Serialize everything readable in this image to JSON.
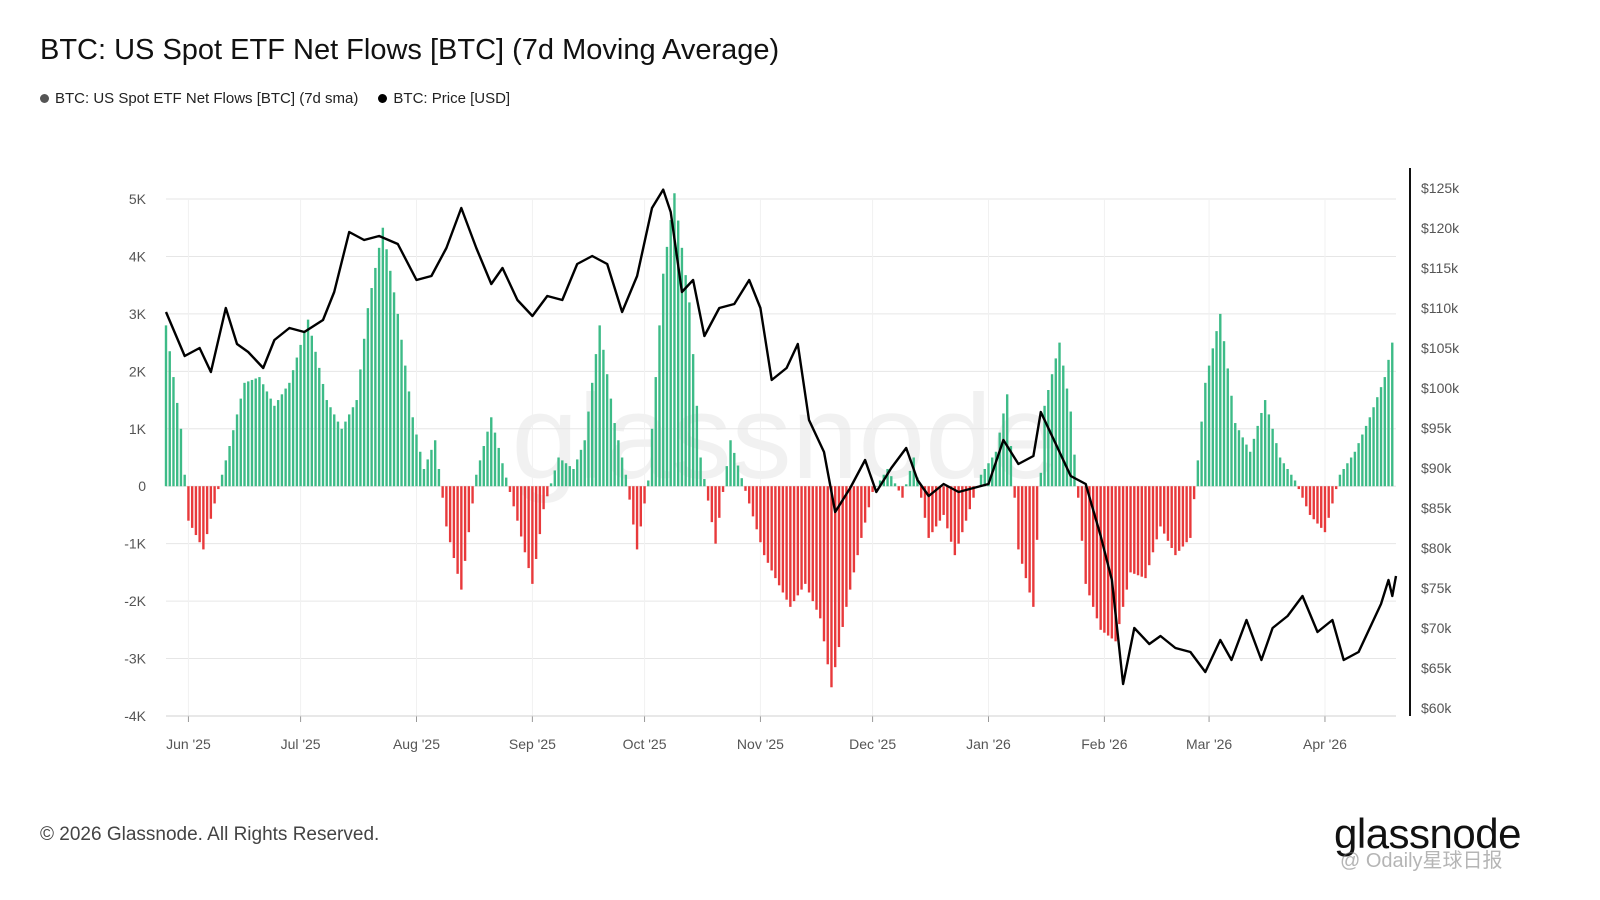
{
  "title": "BTC: US Spot ETF Net Flows [BTC] (7d Moving Average)",
  "legend": [
    {
      "label": "BTC: US Spot ETF Net Flows [BTC] (7d sma)",
      "color": "#555555"
    },
    {
      "label": "BTC: Price [USD]",
      "color": "#000000"
    }
  ],
  "footer": {
    "copyright": "© 2026 Glassnode. All Rights Reserved.",
    "brand": "glassnode",
    "watermark": "@ Odaily星球日报",
    "bg_watermark": "glassnode"
  },
  "colors": {
    "inflow": "#3dbb87",
    "outflow": "#e8393b",
    "price": "#000000"
  },
  "chart_data": {
    "type": "bar",
    "title": "BTC: US Spot ETF Net Flows [BTC] (7d Moving Average)",
    "x_start": "2025-05-26",
    "x_end": "2026-04-20",
    "x_ticks": [
      {
        "date": "2025-06-01",
        "label": "Jun '25"
      },
      {
        "date": "2025-07-01",
        "label": "Jul '25"
      },
      {
        "date": "2025-08-01",
        "label": "Aug '25"
      },
      {
        "date": "2025-09-01",
        "label": "Sep '25"
      },
      {
        "date": "2025-10-01",
        "label": "Oct '25"
      },
      {
        "date": "2025-11-01",
        "label": "Nov '25"
      },
      {
        "date": "2025-12-01",
        "label": "Dec '25"
      },
      {
        "date": "2026-01-01",
        "label": "Jan '26"
      },
      {
        "date": "2026-02-01",
        "label": "Feb '26"
      },
      {
        "date": "2026-03-01",
        "label": "Mar '26"
      },
      {
        "date": "2026-04-01",
        "label": "Apr '26"
      }
    ],
    "y_left": {
      "ylim": [
        -4000,
        5000
      ],
      "ticks": [
        {
          "v": 5000,
          "label": "5K"
        },
        {
          "v": 4000,
          "label": "4K"
        },
        {
          "v": 3000,
          "label": "3K"
        },
        {
          "v": 2000,
          "label": "2K"
        },
        {
          "v": 1000,
          "label": "1K"
        },
        {
          "v": 0,
          "label": "0"
        },
        {
          "v": -1000,
          "label": "-1K"
        },
        {
          "v": -2000,
          "label": "-2K"
        },
        {
          "v": -3000,
          "label": "-3K"
        },
        {
          "v": -4000,
          "label": "-4K"
        }
      ]
    },
    "y_right": {
      "ylim": [
        60000,
        125000
      ],
      "ticks": [
        {
          "v": 125000,
          "label": "$125k"
        },
        {
          "v": 120000,
          "label": "$120k"
        },
        {
          "v": 115000,
          "label": "$115k"
        },
        {
          "v": 110000,
          "label": "$110k"
        },
        {
          "v": 105000,
          "label": "$105k"
        },
        {
          "v": 100000,
          "label": "$100k"
        },
        {
          "v": 95000,
          "label": "$95k"
        },
        {
          "v": 90000,
          "label": "$90k"
        },
        {
          "v": 85000,
          "label": "$85k"
        },
        {
          "v": 80000,
          "label": "$80k"
        },
        {
          "v": 75000,
          "label": "$75k"
        },
        {
          "v": 70000,
          "label": "$70k"
        },
        {
          "v": 65000,
          "label": "$65k"
        },
        {
          "v": 60000,
          "label": "$60k"
        }
      ]
    },
    "grid": true,
    "legend_position": "top-left",
    "series": [
      {
        "name": "BTC: US Spot ETF Net Flows [BTC] (7d sma)",
        "type": "bar",
        "points": [
          [
            "2025-05-26",
            2800
          ],
          [
            "2025-05-30",
            1000
          ],
          [
            "2025-06-01",
            -600
          ],
          [
            "2025-06-05",
            -1100
          ],
          [
            "2025-06-08",
            -300
          ],
          [
            "2025-06-12",
            700
          ],
          [
            "2025-06-16",
            1800
          ],
          [
            "2025-06-20",
            1900
          ],
          [
            "2025-06-24",
            1400
          ],
          [
            "2025-06-28",
            1800
          ],
          [
            "2025-07-03",
            2900
          ],
          [
            "2025-07-08",
            1500
          ],
          [
            "2025-07-12",
            1000
          ],
          [
            "2025-07-16",
            1500
          ],
          [
            "2025-07-19",
            3100
          ],
          [
            "2025-07-23",
            4500
          ],
          [
            "2025-07-27",
            3000
          ],
          [
            "2025-07-31",
            1200
          ],
          [
            "2025-08-03",
            300
          ],
          [
            "2025-08-06",
            800
          ],
          [
            "2025-08-09",
            -700
          ],
          [
            "2025-08-13",
            -1800
          ],
          [
            "2025-08-17",
            200
          ],
          [
            "2025-08-21",
            1200
          ],
          [
            "2025-08-24",
            400
          ],
          [
            "2025-08-28",
            -600
          ],
          [
            "2025-09-01",
            -1700
          ],
          [
            "2025-09-04",
            -400
          ],
          [
            "2025-09-08",
            500
          ],
          [
            "2025-09-12",
            300
          ],
          [
            "2025-09-15",
            800
          ],
          [
            "2025-09-19",
            2800
          ],
          [
            "2025-09-23",
            1100
          ],
          [
            "2025-09-26",
            200
          ],
          [
            "2025-09-29",
            -1100
          ],
          [
            "2025-10-02",
            100
          ],
          [
            "2025-10-06",
            3700
          ],
          [
            "2025-10-09",
            5100
          ],
          [
            "2025-10-13",
            3200
          ],
          [
            "2025-10-16",
            500
          ],
          [
            "2025-10-20",
            -1000
          ],
          [
            "2025-10-24",
            800
          ],
          [
            "2025-10-29",
            -300
          ],
          [
            "2025-11-02",
            -1200
          ],
          [
            "2025-11-05",
            -1600
          ],
          [
            "2025-11-09",
            -2100
          ],
          [
            "2025-11-13",
            -1700
          ],
          [
            "2025-11-17",
            -2300
          ],
          [
            "2025-11-20",
            -3500
          ],
          [
            "2025-11-24",
            -2100
          ],
          [
            "2025-11-28",
            -900
          ],
          [
            "2025-12-01",
            -100
          ],
          [
            "2025-12-05",
            300
          ],
          [
            "2025-12-09",
            -200
          ],
          [
            "2025-12-12",
            500
          ],
          [
            "2025-12-16",
            -900
          ],
          [
            "2025-12-20",
            -500
          ],
          [
            "2025-12-23",
            -1200
          ],
          [
            "2025-12-27",
            -400
          ],
          [
            "2025-12-30",
            200
          ],
          [
            "2026-01-03",
            600
          ],
          [
            "2026-01-06",
            1600
          ],
          [
            "2026-01-09",
            -1100
          ],
          [
            "2026-01-13",
            -2100
          ],
          [
            "2026-01-16",
            1400
          ],
          [
            "2026-01-20",
            2500
          ],
          [
            "2026-01-23",
            1300
          ],
          [
            "2026-01-27",
            -1700
          ],
          [
            "2026-01-31",
            -2500
          ],
          [
            "2026-02-04",
            -2700
          ],
          [
            "2026-02-08",
            -1500
          ],
          [
            "2026-02-12",
            -1600
          ],
          [
            "2026-02-16",
            -700
          ],
          [
            "2026-02-20",
            -1200
          ],
          [
            "2026-02-24",
            -900
          ],
          [
            "2026-02-28",
            1800
          ],
          [
            "2026-03-04",
            3000
          ],
          [
            "2026-03-08",
            1100
          ],
          [
            "2026-03-12",
            600
          ],
          [
            "2026-03-16",
            1500
          ],
          [
            "2026-03-20",
            500
          ],
          [
            "2026-03-24",
            100
          ],
          [
            "2026-03-28",
            -500
          ],
          [
            "2026-04-01",
            -800
          ],
          [
            "2026-04-05",
            200
          ],
          [
            "2026-04-09",
            600
          ],
          [
            "2026-04-13",
            1200
          ],
          [
            "2026-04-17",
            1900
          ],
          [
            "2026-04-19",
            2500
          ]
        ]
      },
      {
        "name": "BTC: Price [USD]",
        "type": "line",
        "axis": "right",
        "points": [
          [
            "2025-05-26",
            109500
          ],
          [
            "2025-05-31",
            104000
          ],
          [
            "2025-06-04",
            105000
          ],
          [
            "2025-06-07",
            102000
          ],
          [
            "2025-06-11",
            110000
          ],
          [
            "2025-06-14",
            105500
          ],
          [
            "2025-06-17",
            104500
          ],
          [
            "2025-06-21",
            102500
          ],
          [
            "2025-06-24",
            106000
          ],
          [
            "2025-06-28",
            107500
          ],
          [
            "2025-07-02",
            107000
          ],
          [
            "2025-07-07",
            108500
          ],
          [
            "2025-07-10",
            112000
          ],
          [
            "2025-07-14",
            119500
          ],
          [
            "2025-07-18",
            118500
          ],
          [
            "2025-07-22",
            119000
          ],
          [
            "2025-07-27",
            118000
          ],
          [
            "2025-08-01",
            113500
          ],
          [
            "2025-08-05",
            114000
          ],
          [
            "2025-08-09",
            117500
          ],
          [
            "2025-08-13",
            122500
          ],
          [
            "2025-08-17",
            117500
          ],
          [
            "2025-08-21",
            113000
          ],
          [
            "2025-08-24",
            115000
          ],
          [
            "2025-08-28",
            111000
          ],
          [
            "2025-09-01",
            109000
          ],
          [
            "2025-09-05",
            111500
          ],
          [
            "2025-09-09",
            111000
          ],
          [
            "2025-09-13",
            115500
          ],
          [
            "2025-09-17",
            116500
          ],
          [
            "2025-09-21",
            115500
          ],
          [
            "2025-09-25",
            109500
          ],
          [
            "2025-09-29",
            114000
          ],
          [
            "2025-10-03",
            122500
          ],
          [
            "2025-10-06",
            124800
          ],
          [
            "2025-10-08",
            122000
          ],
          [
            "2025-10-11",
            112000
          ],
          [
            "2025-10-14",
            113500
          ],
          [
            "2025-10-17",
            106500
          ],
          [
            "2025-10-21",
            110000
          ],
          [
            "2025-10-25",
            110500
          ],
          [
            "2025-10-29",
            113500
          ],
          [
            "2025-11-01",
            110000
          ],
          [
            "2025-11-04",
            101000
          ],
          [
            "2025-11-08",
            102500
          ],
          [
            "2025-11-11",
            105500
          ],
          [
            "2025-11-14",
            96000
          ],
          [
            "2025-11-18",
            92000
          ],
          [
            "2025-11-21",
            84500
          ],
          [
            "2025-11-25",
            87500
          ],
          [
            "2025-11-29",
            91000
          ],
          [
            "2025-12-02",
            87000
          ],
          [
            "2025-12-06",
            90000
          ],
          [
            "2025-12-10",
            92500
          ],
          [
            "2025-12-13",
            88500
          ],
          [
            "2025-12-16",
            86500
          ],
          [
            "2025-12-20",
            88000
          ],
          [
            "2025-12-24",
            87000
          ],
          [
            "2025-12-28",
            87500
          ],
          [
            "2026-01-01",
            88000
          ],
          [
            "2026-01-05",
            93500
          ],
          [
            "2026-01-09",
            90500
          ],
          [
            "2026-01-13",
            91500
          ],
          [
            "2026-01-15",
            97000
          ],
          [
            "2026-01-19",
            93000
          ],
          [
            "2026-01-23",
            89000
          ],
          [
            "2026-01-27",
            88000
          ],
          [
            "2026-01-31",
            81500
          ],
          [
            "2026-02-03",
            76000
          ],
          [
            "2026-02-06",
            63000
          ],
          [
            "2026-02-09",
            70000
          ],
          [
            "2026-02-13",
            68000
          ],
          [
            "2026-02-16",
            69000
          ],
          [
            "2026-02-20",
            67500
          ],
          [
            "2026-02-24",
            67000
          ],
          [
            "2026-02-28",
            64500
          ],
          [
            "2026-03-04",
            68500
          ],
          [
            "2026-03-07",
            66000
          ],
          [
            "2026-03-11",
            71000
          ],
          [
            "2026-03-15",
            66000
          ],
          [
            "2026-03-18",
            70000
          ],
          [
            "2026-03-22",
            71500
          ],
          [
            "2026-03-26",
            74000
          ],
          [
            "2026-03-30",
            69500
          ],
          [
            "2026-04-03",
            71000
          ],
          [
            "2026-04-06",
            66000
          ],
          [
            "2026-04-10",
            67000
          ],
          [
            "2026-04-13",
            70000
          ],
          [
            "2026-04-16",
            73000
          ],
          [
            "2026-04-18",
            76000
          ],
          [
            "2026-04-19",
            74000
          ],
          [
            "2026-04-20",
            76500
          ]
        ]
      }
    ]
  }
}
